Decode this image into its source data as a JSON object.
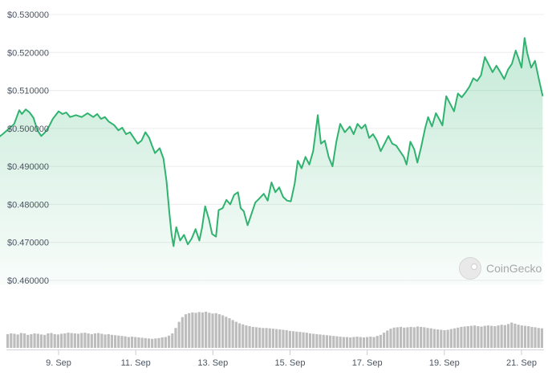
{
  "chart_data": {
    "type": "area",
    "title": "",
    "xlabel": "",
    "ylabel": "",
    "ylim": [
      0.455,
      0.533
    ],
    "y_ticks": [
      "$0.530000",
      "$0.520000",
      "$0.510000",
      "$0.500000",
      "$0.490000",
      "$0.480000",
      "$0.470000",
      "$0.460000"
    ],
    "x_tick_labels": [
      "9. Sep",
      "11. Sep",
      "13. Sep",
      "15. Sep",
      "17. Sep",
      "19. Sep",
      "21. Sep"
    ],
    "x_range_days": [
      7.4,
      21.6
    ],
    "series": [
      {
        "points": [
          [
            7.42,
            0.4975
          ],
          [
            7.55,
            0.4985
          ],
          [
            7.7,
            0.4998
          ],
          [
            7.85,
            0.5012
          ],
          [
            7.98,
            0.5048
          ],
          [
            8.05,
            0.5038
          ],
          [
            8.15,
            0.505
          ],
          [
            8.25,
            0.5042
          ],
          [
            8.35,
            0.5028
          ],
          [
            8.45,
            0.4995
          ],
          [
            8.55,
            0.498
          ],
          [
            8.65,
            0.499
          ],
          [
            8.75,
            0.5005
          ],
          [
            8.85,
            0.5025
          ],
          [
            9.0,
            0.5045
          ],
          [
            9.1,
            0.5038
          ],
          [
            9.2,
            0.5042
          ],
          [
            9.3,
            0.503
          ],
          [
            9.45,
            0.5035
          ],
          [
            9.6,
            0.503
          ],
          [
            9.75,
            0.504
          ],
          [
            9.9,
            0.503
          ],
          [
            10.0,
            0.5038
          ],
          [
            10.1,
            0.5025
          ],
          [
            10.2,
            0.503
          ],
          [
            10.3,
            0.5018
          ],
          [
            10.45,
            0.5008
          ],
          [
            10.55,
            0.4995
          ],
          [
            10.65,
            0.5002
          ],
          [
            10.75,
            0.4985
          ],
          [
            10.85,
            0.499
          ],
          [
            10.95,
            0.4975
          ],
          [
            11.05,
            0.496
          ],
          [
            11.15,
            0.4968
          ],
          [
            11.25,
            0.499
          ],
          [
            11.35,
            0.4975
          ],
          [
            11.42,
            0.4955
          ],
          [
            11.5,
            0.4935
          ],
          [
            11.62,
            0.4948
          ],
          [
            11.72,
            0.492
          ],
          [
            11.8,
            0.486
          ],
          [
            11.87,
            0.478
          ],
          [
            11.93,
            0.472
          ],
          [
            11.98,
            0.469
          ],
          [
            12.05,
            0.474
          ],
          [
            12.15,
            0.4705
          ],
          [
            12.25,
            0.472
          ],
          [
            12.35,
            0.4695
          ],
          [
            12.45,
            0.471
          ],
          [
            12.55,
            0.4735
          ],
          [
            12.65,
            0.4705
          ],
          [
            12.72,
            0.474
          ],
          [
            12.8,
            0.4795
          ],
          [
            12.9,
            0.476
          ],
          [
            12.98,
            0.4722
          ],
          [
            13.08,
            0.4715
          ],
          [
            13.15,
            0.4785
          ],
          [
            13.25,
            0.479
          ],
          [
            13.35,
            0.4812
          ],
          [
            13.45,
            0.48
          ],
          [
            13.55,
            0.4825
          ],
          [
            13.65,
            0.4832
          ],
          [
            13.72,
            0.479
          ],
          [
            13.8,
            0.4782
          ],
          [
            13.9,
            0.4745
          ],
          [
            14.0,
            0.4775
          ],
          [
            14.1,
            0.4805
          ],
          [
            14.2,
            0.4815
          ],
          [
            14.32,
            0.4828
          ],
          [
            14.42,
            0.481
          ],
          [
            14.52,
            0.4858
          ],
          [
            14.62,
            0.4832
          ],
          [
            14.72,
            0.4845
          ],
          [
            14.82,
            0.482
          ],
          [
            14.92,
            0.481
          ],
          [
            15.02,
            0.4808
          ],
          [
            15.12,
            0.4855
          ],
          [
            15.2,
            0.4915
          ],
          [
            15.3,
            0.4895
          ],
          [
            15.4,
            0.4925
          ],
          [
            15.5,
            0.4905
          ],
          [
            15.6,
            0.494
          ],
          [
            15.72,
            0.5035
          ],
          [
            15.8,
            0.496
          ],
          [
            15.9,
            0.4968
          ],
          [
            16.0,
            0.4925
          ],
          [
            16.1,
            0.49
          ],
          [
            16.2,
            0.4965
          ],
          [
            16.3,
            0.5012
          ],
          [
            16.42,
            0.499
          ],
          [
            16.55,
            0.5005
          ],
          [
            16.65,
            0.4985
          ],
          [
            16.75,
            0.5012
          ],
          [
            16.85,
            0.5
          ],
          [
            16.95,
            0.501
          ],
          [
            17.05,
            0.4975
          ],
          [
            17.15,
            0.4985
          ],
          [
            17.25,
            0.4968
          ],
          [
            17.35,
            0.494
          ],
          [
            17.45,
            0.496
          ],
          [
            17.55,
            0.498
          ],
          [
            17.65,
            0.496
          ],
          [
            17.75,
            0.4955
          ],
          [
            17.85,
            0.494
          ],
          [
            17.95,
            0.4925
          ],
          [
            18.02,
            0.4905
          ],
          [
            18.12,
            0.4965
          ],
          [
            18.22,
            0.4945
          ],
          [
            18.3,
            0.491
          ],
          [
            18.4,
            0.4952
          ],
          [
            18.5,
            0.5
          ],
          [
            18.58,
            0.503
          ],
          [
            18.68,
            0.5005
          ],
          [
            18.78,
            0.504
          ],
          [
            18.88,
            0.5022
          ],
          [
            18.95,
            0.5008
          ],
          [
            19.05,
            0.5085
          ],
          [
            19.15,
            0.5065
          ],
          [
            19.25,
            0.5045
          ],
          [
            19.35,
            0.5092
          ],
          [
            19.45,
            0.5082
          ],
          [
            19.55,
            0.5095
          ],
          [
            19.65,
            0.511
          ],
          [
            19.75,
            0.5132
          ],
          [
            19.85,
            0.5125
          ],
          [
            19.95,
            0.514
          ],
          [
            20.05,
            0.5188
          ],
          [
            20.15,
            0.5168
          ],
          [
            20.25,
            0.5148
          ],
          [
            20.35,
            0.5165
          ],
          [
            20.45,
            0.5148
          ],
          [
            20.55,
            0.513
          ],
          [
            20.65,
            0.5155
          ],
          [
            20.75,
            0.517
          ],
          [
            20.85,
            0.5205
          ],
          [
            20.92,
            0.5185
          ],
          [
            21.0,
            0.516
          ],
          [
            21.08,
            0.5238
          ],
          [
            21.15,
            0.5198
          ],
          [
            21.25,
            0.516
          ],
          [
            21.35,
            0.5178
          ],
          [
            21.45,
            0.513
          ],
          [
            21.55,
            0.5085
          ]
        ]
      }
    ],
    "volume": [
      0.38,
      0.4,
      0.39,
      0.37,
      0.41,
      0.4,
      0.36,
      0.38,
      0.4,
      0.39,
      0.37,
      0.36,
      0.4,
      0.41,
      0.38,
      0.37,
      0.39,
      0.4,
      0.42,
      0.41,
      0.4,
      0.39,
      0.41,
      0.42,
      0.4,
      0.38,
      0.4,
      0.41,
      0.39,
      0.37,
      0.38,
      0.36,
      0.35,
      0.34,
      0.33,
      0.32,
      0.3,
      0.31,
      0.3,
      0.29,
      0.28,
      0.27,
      0.26,
      0.25,
      0.26,
      0.27,
      0.29,
      0.3,
      0.34,
      0.4,
      0.55,
      0.72,
      0.85,
      0.93,
      0.96,
      0.98,
      0.97,
      0.99,
      0.98,
      1.0,
      0.97,
      0.95,
      0.96,
      0.93,
      0.9,
      0.86,
      0.82,
      0.77,
      0.72,
      0.68,
      0.65,
      0.62,
      0.6,
      0.58,
      0.57,
      0.56,
      0.55,
      0.55,
      0.54,
      0.53,
      0.52,
      0.51,
      0.5,
      0.49,
      0.47,
      0.46,
      0.45,
      0.44,
      0.43,
      0.42,
      0.4,
      0.39,
      0.38,
      0.37,
      0.36,
      0.35,
      0.34,
      0.33,
      0.32,
      0.31,
      0.3,
      0.3,
      0.29,
      0.3,
      0.31,
      0.3,
      0.29,
      0.3,
      0.31,
      0.3,
      0.33,
      0.36,
      0.42,
      0.48,
      0.53,
      0.56,
      0.57,
      0.58,
      0.56,
      0.57,
      0.58,
      0.57,
      0.59,
      0.58,
      0.57,
      0.55,
      0.54,
      0.52,
      0.51,
      0.5,
      0.49,
      0.5,
      0.52,
      0.54,
      0.56,
      0.58,
      0.59,
      0.6,
      0.61,
      0.62,
      0.6,
      0.59,
      0.61,
      0.62,
      0.61,
      0.6,
      0.62,
      0.64,
      0.63,
      0.66,
      0.7,
      0.67,
      0.64,
      0.62,
      0.61,
      0.6,
      0.58,
      0.57,
      0.55,
      0.54
    ],
    "grid": true,
    "line_color": "#2fb36f",
    "fill_color": "#2fb36f",
    "volume_color": "#bdbdbd"
  },
  "watermark": {
    "text": "CoinGecko",
    "icon": "gecko-logo-icon"
  }
}
